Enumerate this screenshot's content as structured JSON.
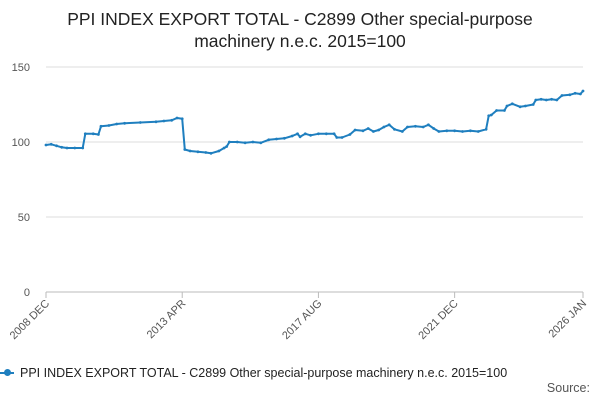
{
  "chart_data": {
    "type": "line",
    "title_line1": "PPI INDEX EXPORT TOTAL - C2899 Other special-purpose",
    "title_line2": "machinery n.e.c. 2015=100",
    "xlabel": "",
    "ylabel": "",
    "ylim": [
      0,
      150
    ],
    "yticks": [
      0,
      50,
      100,
      150
    ],
    "xlim": [
      "2008-12",
      "2026-01"
    ],
    "xticks": [
      "2008 DEC",
      "2013 APR",
      "2017 AUG",
      "2021 DEC",
      "2026 JAN"
    ],
    "grid": "horizontal",
    "legend_position": "bottom",
    "color": "#1f7fbf",
    "series": [
      {
        "name": "PPI INDEX EXPORT TOTAL - C2899 Other special-purpose machinery n.e.c. 2015=100",
        "points": [
          [
            "2008-12",
            98
          ],
          [
            "2009-02",
            98.5
          ],
          [
            "2009-04",
            97.5
          ],
          [
            "2009-06",
            96.5
          ],
          [
            "2009-08",
            96
          ],
          [
            "2009-11",
            96
          ],
          [
            "2010-02",
            96
          ],
          [
            "2010-03",
            105.5
          ],
          [
            "2010-06",
            105.5
          ],
          [
            "2010-08",
            105
          ],
          [
            "2010-09",
            110.5
          ],
          [
            "2010-12",
            111
          ],
          [
            "2011-03",
            112
          ],
          [
            "2011-06",
            112.5
          ],
          [
            "2011-12",
            113
          ],
          [
            "2012-06",
            113.5
          ],
          [
            "2012-09",
            114
          ],
          [
            "2012-12",
            114.5
          ],
          [
            "2013-02",
            116
          ],
          [
            "2013-04",
            115.5
          ],
          [
            "2013-05",
            95
          ],
          [
            "2013-07",
            94
          ],
          [
            "2013-10",
            93.5
          ],
          [
            "2014-01",
            93
          ],
          [
            "2014-03",
            92.5
          ],
          [
            "2014-06",
            94
          ],
          [
            "2014-08",
            96
          ],
          [
            "2014-09",
            97
          ],
          [
            "2014-10",
            100
          ],
          [
            "2015-01",
            100
          ],
          [
            "2015-04",
            99.5
          ],
          [
            "2015-07",
            100
          ],
          [
            "2015-10",
            99.5
          ],
          [
            "2016-01",
            101.5
          ],
          [
            "2016-04",
            102
          ],
          [
            "2016-07",
            102.5
          ],
          [
            "2016-10",
            104
          ],
          [
            "2016-12",
            105.5
          ],
          [
            "2017-01",
            103.5
          ],
          [
            "2017-03",
            105.5
          ],
          [
            "2017-05",
            104.5
          ],
          [
            "2017-08",
            105.5
          ],
          [
            "2017-11",
            105.5
          ],
          [
            "2018-02",
            105.5
          ],
          [
            "2018-03",
            103
          ],
          [
            "2018-05",
            103
          ],
          [
            "2018-08",
            105
          ],
          [
            "2018-10",
            108
          ],
          [
            "2019-01",
            107.5
          ],
          [
            "2019-03",
            109
          ],
          [
            "2019-05",
            107
          ],
          [
            "2019-07",
            108
          ],
          [
            "2019-09",
            110
          ],
          [
            "2019-11",
            111.5
          ],
          [
            "2020-01",
            108.5
          ],
          [
            "2020-04",
            107
          ],
          [
            "2020-06",
            110
          ],
          [
            "2020-09",
            110.5
          ],
          [
            "2020-12",
            110
          ],
          [
            "2021-02",
            111.5
          ],
          [
            "2021-04",
            109
          ],
          [
            "2021-06",
            107
          ],
          [
            "2021-09",
            107.5
          ],
          [
            "2021-12",
            107.5
          ],
          [
            "2022-03",
            107
          ],
          [
            "2022-06",
            107.5
          ],
          [
            "2022-09",
            107
          ],
          [
            "2022-12",
            108.5
          ],
          [
            "2023-01",
            117.5
          ],
          [
            "2023-02",
            118
          ],
          [
            "2023-04",
            121
          ],
          [
            "2023-07",
            121
          ],
          [
            "2023-08",
            124
          ],
          [
            "2023-10",
            125.5
          ],
          [
            "2024-01",
            123.5
          ],
          [
            "2024-03",
            124
          ],
          [
            "2024-06",
            125
          ],
          [
            "2024-07",
            128
          ],
          [
            "2024-09",
            128.5
          ],
          [
            "2024-11",
            128
          ],
          [
            "2025-01",
            128.5
          ],
          [
            "2025-03",
            128
          ],
          [
            "2025-05",
            131
          ],
          [
            "2025-08",
            131.5
          ],
          [
            "2025-10",
            132.5
          ],
          [
            "2025-12",
            132
          ],
          [
            "2026-01",
            134
          ]
        ]
      }
    ]
  },
  "source_label": "Source:"
}
